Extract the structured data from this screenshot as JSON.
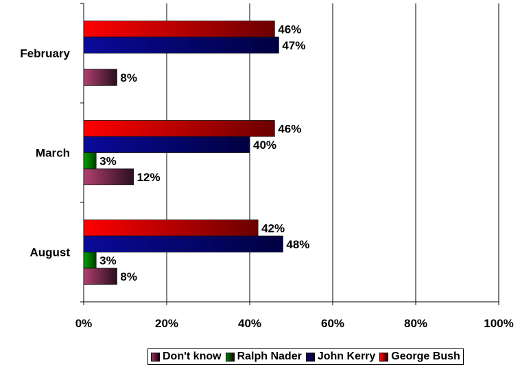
{
  "chart_data": {
    "type": "bar",
    "orientation": "horizontal",
    "categories": [
      "February",
      "March",
      "August"
    ],
    "series": [
      {
        "name": "George Bush",
        "values": [
          46,
          46,
          42
        ],
        "labels": [
          "46%",
          "46%",
          "42%"
        ],
        "color": "#ff0000"
      },
      {
        "name": "John Kerry",
        "values": [
          47,
          40,
          48
        ],
        "labels": [
          "47%",
          "40%",
          "48%"
        ],
        "color": "#00008b"
      },
      {
        "name": "Ralph Nader",
        "values": [
          null,
          3,
          3
        ],
        "labels": [
          "",
          "3%",
          "3%"
        ],
        "color": "#008000"
      },
      {
        "name": "Don't know",
        "values": [
          8,
          12,
          8
        ],
        "labels": [
          "8%",
          "12%",
          "8%"
        ],
        "color": "#993366"
      }
    ],
    "xlim": [
      0,
      100
    ],
    "xticks": [
      "0%",
      "20%",
      "40%",
      "60%",
      "80%",
      "100%"
    ],
    "grid": true,
    "legend": {
      "position": "bottom",
      "order": [
        "Don't know",
        "Ralph Nader",
        "John Kerry",
        "George Bush"
      ]
    }
  }
}
